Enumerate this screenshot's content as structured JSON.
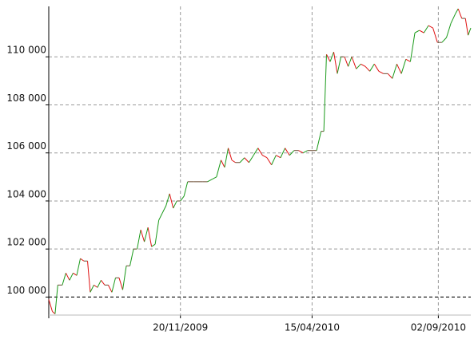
{
  "chart_data": {
    "type": "line",
    "up_color": "#1a9a1a",
    "down_color": "#e01010",
    "flat_color": "#6a4a30",
    "baseline": 100000,
    "grid": true,
    "xlim": [
      "27/06/2009",
      "08/10/2010"
    ],
    "xticks": [
      "20/11/2009",
      "15/04/2010",
      "02/09/2010"
    ],
    "ylim": [
      99250,
      112100
    ],
    "yticks": [
      {
        "value": 100000,
        "label": "100 000"
      },
      {
        "value": 102000,
        "label": "102 000"
      },
      {
        "value": 104000,
        "label": "104 000"
      },
      {
        "value": 106000,
        "label": "106 000"
      },
      {
        "value": 108000,
        "label": "108 000"
      },
      {
        "value": 110000,
        "label": "110 000"
      }
    ],
    "x": [
      "27/06/2009",
      "01/07/2009",
      "04/07/2009",
      "07/07/2009",
      "12/07/2009",
      "16/07/2009",
      "20/07/2009",
      "24/07/2009",
      "28/07/2009",
      "01/08/2009",
      "05/08/2009",
      "09/08/2009",
      "12/08/2009",
      "16/08/2009",
      "20/08/2009",
      "24/08/2009",
      "28/08/2009",
      "01/09/2009",
      "05/09/2009",
      "09/09/2009",
      "13/09/2009",
      "17/09/2009",
      "21/09/2009",
      "25/09/2009",
      "29/09/2009",
      "03/10/2009",
      "07/10/2009",
      "11/10/2009",
      "15/10/2009",
      "19/10/2009",
      "23/10/2009",
      "27/10/2009",
      "31/10/2009",
      "04/11/2009",
      "08/11/2009",
      "12/11/2009",
      "16/11/2009",
      "20/11/2009",
      "24/11/2009",
      "28/11/2009",
      "05/12/2009",
      "15/12/2009",
      "20/12/2009",
      "25/12/2009",
      "30/12/2009",
      "04/01/2010",
      "08/01/2010",
      "12/01/2010",
      "16/01/2010",
      "20/01/2010",
      "25/01/2010",
      "30/01/2010",
      "04/02/2010",
      "09/02/2010",
      "14/02/2010",
      "19/02/2010",
      "24/02/2010",
      "01/03/2010",
      "06/03/2010",
      "11/03/2010",
      "16/03/2010",
      "21/03/2010",
      "26/03/2010",
      "31/03/2010",
      "05/04/2010",
      "10/04/2010",
      "15/04/2010",
      "20/04/2010",
      "25/04/2010",
      "28/04/2010",
      "01/05/2010",
      "05/05/2010",
      "09/05/2010",
      "13/05/2010",
      "17/05/2010",
      "21/05/2010",
      "25/05/2010",
      "29/05/2010",
      "03/06/2010",
      "08/06/2010",
      "13/06/2010",
      "18/06/2010",
      "23/06/2010",
      "28/06/2010",
      "03/07/2010",
      "08/07/2010",
      "13/07/2010",
      "18/07/2010",
      "23/07/2010",
      "28/07/2010",
      "02/08/2010",
      "07/08/2010",
      "12/08/2010",
      "17/08/2010",
      "22/08/2010",
      "27/08/2010",
      "01/09/2010",
      "06/09/2010",
      "11/09/2010",
      "16/09/2010",
      "21/09/2010",
      "24/09/2010",
      "28/09/2010",
      "02/10/2010",
      "05/10/2010",
      "08/10/2010"
    ],
    "values": [
      99900,
      99400,
      99300,
      100500,
      100500,
      101000,
      100700,
      101000,
      100900,
      101600,
      101500,
      101500,
      100200,
      100500,
      100400,
      100700,
      100500,
      100500,
      100200,
      100800,
      100800,
      100300,
      101300,
      101300,
      102000,
      102000,
      102800,
      102300,
      102900,
      102100,
      102200,
      103200,
      103500,
      103800,
      104300,
      103700,
      104000,
      104000,
      104200,
      104800,
      104800,
      104800,
      104800,
      104900,
      105000,
      105700,
      105400,
      106200,
      105700,
      105600,
      105600,
      105800,
      105600,
      105900,
      106200,
      105900,
      105800,
      105500,
      105900,
      105800,
      106200,
      105900,
      106100,
      106100,
      106000,
      106100,
      106100,
      106100,
      106900,
      106900,
      110100,
      109800,
      110200,
      109300,
      110000,
      110000,
      109600,
      110000,
      109500,
      109700,
      109600,
      109400,
      109700,
      109400,
      109300,
      109300,
      109100,
      109700,
      109300,
      109900,
      109800,
      111000,
      111100,
      111000,
      111300,
      111200,
      110600,
      110600,
      110800,
      111400,
      111800,
      112000,
      111600,
      111600,
      110900,
      111200
    ]
  }
}
